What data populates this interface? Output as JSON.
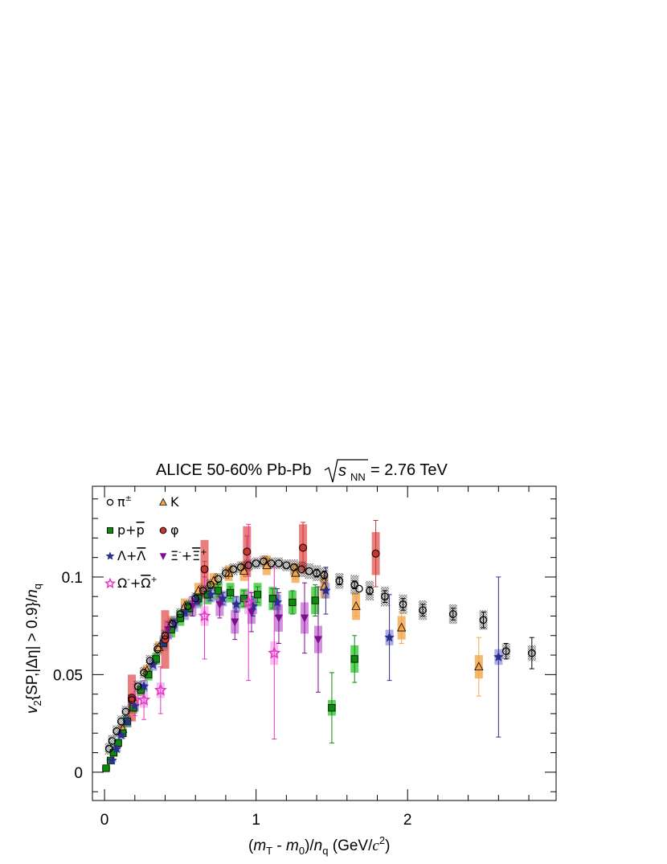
{
  "chart_data": {
    "type": "scatter",
    "title": {
      "main": "ALICE 50-60% Pb-Pb",
      "energy_symbol": "s",
      "energy_sub": "NN",
      "energy_value": "= 2.76 TeV"
    },
    "xlabel": {
      "open": "(",
      "m": "m",
      "T": "T",
      "dash": " - ",
      "m0": "m",
      "zero": "0",
      "close": ")/",
      "n": "n",
      "q": "q",
      "unit": " (GeV/",
      "c": "c",
      "two": "2",
      "end": ")"
    },
    "ylabel": {
      "v": "v",
      "two": "2",
      "body": "{SP,|Δη| > 0.9}/",
      "n": "n",
      "q": "q"
    },
    "xlim": [
      -0.08,
      2.98
    ],
    "ylim": [
      -0.0145,
      0.1465
    ],
    "xticks": [
      {
        "v": 0,
        "label": "0"
      },
      {
        "v": 1,
        "label": "1"
      },
      {
        "v": 2,
        "label": "2"
      }
    ],
    "yticks": [
      {
        "v": 0,
        "label": "0"
      },
      {
        "v": 0.05,
        "label": "0.05"
      },
      {
        "v": 0.1,
        "label": "0.1"
      }
    ],
    "series": [
      {
        "name": "π±",
        "legend": {
          "base": "π",
          "sup": "±"
        },
        "marker": "circle-open",
        "color": "#000000",
        "syscolor": "#000000",
        "sysopacity": 0.55,
        "points": [
          [
            0.03,
            0.012,
            0.001,
            0.003
          ],
          [
            0.05,
            0.016,
            0.001,
            0.003
          ],
          [
            0.08,
            0.021,
            0.001,
            0.003
          ],
          [
            0.11,
            0.026,
            0.001,
            0.003
          ],
          [
            0.14,
            0.031,
            0.001,
            0.003
          ],
          [
            0.18,
            0.037,
            0.001,
            0.003
          ],
          [
            0.22,
            0.044,
            0.001,
            0.003
          ],
          [
            0.26,
            0.051,
            0.001,
            0.003
          ],
          [
            0.3,
            0.057,
            0.001,
            0.003
          ],
          [
            0.35,
            0.063,
            0.001,
            0.003
          ],
          [
            0.4,
            0.07,
            0.001,
            0.003
          ],
          [
            0.45,
            0.076,
            0.001,
            0.003
          ],
          [
            0.5,
            0.081,
            0.001,
            0.003
          ],
          [
            0.55,
            0.085,
            0.001,
            0.003
          ],
          [
            0.6,
            0.089,
            0.001,
            0.003
          ],
          [
            0.65,
            0.093,
            0.001,
            0.003
          ],
          [
            0.7,
            0.096,
            0.001,
            0.003
          ],
          [
            0.75,
            0.099,
            0.001,
            0.003
          ],
          [
            0.8,
            0.102,
            0.001,
            0.003
          ],
          [
            0.85,
            0.104,
            0.001,
            0.003
          ],
          [
            0.9,
            0.105,
            0.001,
            0.003
          ],
          [
            0.95,
            0.106,
            0.001,
            0.003
          ],
          [
            1.0,
            0.107,
            0.001,
            0.003
          ],
          [
            1.05,
            0.108,
            0.001,
            0.003
          ],
          [
            1.1,
            0.107,
            0.001,
            0.003
          ],
          [
            1.15,
            0.107,
            0.001,
            0.003
          ],
          [
            1.2,
            0.106,
            0.001,
            0.003
          ],
          [
            1.25,
            0.105,
            0.001,
            0.004
          ],
          [
            1.3,
            0.104,
            0.001,
            0.004
          ],
          [
            1.35,
            0.103,
            0.001,
            0.004
          ],
          [
            1.4,
            0.102,
            0.002,
            0.004
          ],
          [
            1.45,
            0.101,
            0.002,
            0.004
          ],
          [
            1.55,
            0.098,
            0.002,
            0.004
          ],
          [
            1.65,
            0.096,
            0.002,
            0.005
          ],
          [
            1.75,
            0.093,
            0.002,
            0.005
          ],
          [
            1.85,
            0.09,
            0.003,
            0.005
          ],
          [
            1.97,
            0.086,
            0.003,
            0.005
          ],
          [
            2.1,
            0.083,
            0.003,
            0.005
          ],
          [
            2.3,
            0.081,
            0.003,
            0.005
          ],
          [
            2.5,
            0.078,
            0.004,
            0.005
          ],
          [
            2.65,
            0.062,
            0.004,
            0.004
          ],
          [
            2.82,
            0.061,
            0.008,
            0.004
          ],
          [
            1.68,
            0.094,
            0.0,
            0.0
          ]
        ]
      },
      {
        "name": "K",
        "legend": {
          "base": "K"
        },
        "marker": "triangle",
        "color": "#f4a54a",
        "syscolor": "#f4a54a",
        "sysopacity": 0.8,
        "points": [
          [
            0.12,
            0.022,
            0.001,
            0.002
          ],
          [
            0.2,
            0.036,
            0.001,
            0.003
          ],
          [
            0.28,
            0.052,
            0.001,
            0.003
          ],
          [
            0.36,
            0.064,
            0.001,
            0.003
          ],
          [
            0.44,
            0.076,
            0.001,
            0.004
          ],
          [
            0.53,
            0.085,
            0.001,
            0.004
          ],
          [
            0.62,
            0.093,
            0.001,
            0.004
          ],
          [
            0.72,
            0.098,
            0.002,
            0.004
          ],
          [
            0.82,
            0.102,
            0.002,
            0.004
          ],
          [
            0.92,
            0.103,
            0.002,
            0.005
          ],
          [
            1.07,
            0.106,
            0.002,
            0.005
          ],
          [
            1.26,
            0.102,
            0.003,
            0.005
          ],
          [
            1.45,
            0.095,
            0.004,
            0.006
          ],
          [
            1.66,
            0.085,
            0.005,
            0.007
          ],
          [
            1.96,
            0.074,
            0.008,
            0.006
          ],
          [
            2.47,
            0.054,
            0.015,
            0.006
          ]
        ]
      },
      {
        "name": "p+p̄",
        "legend": {
          "base": "p+",
          "bar": "p"
        },
        "marker": "square",
        "color": "#0e8a0e",
        "syscolor": "#2cc42c",
        "sysopacity": 0.75,
        "points": [
          [
            0.01,
            0.002,
            0.001,
            0.001
          ],
          [
            0.04,
            0.006,
            0.001,
            0.001
          ],
          [
            0.06,
            0.01,
            0.001,
            0.002
          ],
          [
            0.09,
            0.015,
            0.001,
            0.002
          ],
          [
            0.12,
            0.02,
            0.001,
            0.002
          ],
          [
            0.15,
            0.026,
            0.001,
            0.003
          ],
          [
            0.19,
            0.033,
            0.001,
            0.003
          ],
          [
            0.24,
            0.042,
            0.001,
            0.003
          ],
          [
            0.29,
            0.05,
            0.001,
            0.003
          ],
          [
            0.34,
            0.058,
            0.001,
            0.003
          ],
          [
            0.39,
            0.066,
            0.001,
            0.003
          ],
          [
            0.44,
            0.073,
            0.001,
            0.004
          ],
          [
            0.5,
            0.079,
            0.002,
            0.004
          ],
          [
            0.56,
            0.084,
            0.002,
            0.004
          ],
          [
            0.62,
            0.089,
            0.002,
            0.004
          ],
          [
            0.68,
            0.091,
            0.002,
            0.005
          ],
          [
            0.75,
            0.093,
            0.003,
            0.005
          ],
          [
            0.83,
            0.092,
            0.003,
            0.005
          ],
          [
            0.92,
            0.089,
            0.004,
            0.005
          ],
          [
            1.01,
            0.091,
            0.004,
            0.006
          ],
          [
            1.11,
            0.089,
            0.005,
            0.006
          ],
          [
            1.24,
            0.087,
            0.006,
            0.006
          ],
          [
            1.39,
            0.088,
            0.008,
            0.007
          ],
          [
            1.65,
            0.058,
            0.012,
            0.007
          ],
          [
            1.5,
            0.033,
            0.018,
            0.004
          ]
        ]
      },
      {
        "name": "φ",
        "legend": {
          "base": "φ"
        },
        "marker": "circle",
        "color": "#c8372d",
        "syscolor": "#e05353",
        "sysopacity": 0.75,
        "points": [
          [
            0.18,
            0.038,
            0.002,
            0.012
          ],
          [
            0.4,
            0.068,
            0.002,
            0.015
          ],
          [
            0.66,
            0.104,
            0.004,
            0.015
          ],
          [
            0.94,
            0.113,
            0.008,
            0.013
          ],
          [
            1.31,
            0.115,
            0.013,
            0.012
          ],
          [
            1.79,
            0.112,
            0.017,
            0.011
          ]
        ]
      },
      {
        "name": "Λ+Λ̄",
        "legend": {
          "base": "Λ+",
          "bar": "Λ"
        },
        "marker": "star",
        "color": "#2b2e8a",
        "syscolor": "#5b5ed0",
        "sysopacity": 0.5,
        "points": [
          [
            0.05,
            0.006,
            0.001,
            0.001
          ],
          [
            0.08,
            0.012,
            0.001,
            0.002
          ],
          [
            0.11,
            0.019,
            0.001,
            0.002
          ],
          [
            0.15,
            0.026,
            0.001,
            0.003
          ],
          [
            0.2,
            0.034,
            0.001,
            0.003
          ],
          [
            0.26,
            0.044,
            0.001,
            0.003
          ],
          [
            0.32,
            0.055,
            0.001,
            0.003
          ],
          [
            0.39,
            0.066,
            0.001,
            0.004
          ],
          [
            0.46,
            0.076,
            0.002,
            0.004
          ],
          [
            0.53,
            0.082,
            0.002,
            0.004
          ],
          [
            0.61,
            0.088,
            0.002,
            0.004
          ],
          [
            0.7,
            0.091,
            0.003,
            0.004
          ],
          [
            0.78,
            0.089,
            0.003,
            0.004
          ],
          [
            0.87,
            0.086,
            0.004,
            0.004
          ],
          [
            0.98,
            0.085,
            0.005,
            0.004
          ],
          [
            1.14,
            0.087,
            0.007,
            0.004
          ],
          [
            1.46,
            0.093,
            0.012,
            0.004
          ],
          [
            1.88,
            0.069,
            0.022,
            0.004
          ],
          [
            2.6,
            0.059,
            0.041,
            0.004
          ]
        ]
      },
      {
        "name": "Ξ⁻+Ξ̄⁺",
        "legend": {
          "base": "Ξ",
          "sup1": "-",
          "plus": "+",
          "bar": "Ξ",
          "sup2": "+"
        },
        "marker": "triangle-down",
        "color": "#7a0f8c",
        "syscolor": "#b54ac8",
        "sysopacity": 0.6,
        "points": [
          [
            0.42,
            0.073,
            0.004,
            0.005
          ],
          [
            0.58,
            0.085,
            0.005,
            0.005
          ],
          [
            0.76,
            0.086,
            0.007,
            0.006
          ],
          [
            0.86,
            0.077,
            0.009,
            0.006
          ],
          [
            0.97,
            0.082,
            0.01,
            0.006
          ],
          [
            1.15,
            0.079,
            0.013,
            0.007
          ],
          [
            1.32,
            0.079,
            0.018,
            0.008
          ],
          [
            1.41,
            0.068,
            0.027,
            0.007
          ]
        ]
      },
      {
        "name": "Ω⁻+Ω̄⁺",
        "legend": {
          "base": "Ω",
          "sup1": "-",
          "plus": "+",
          "bar": "Ω",
          "sup2": "+"
        },
        "marker": "star-open",
        "color": "#e535c4",
        "syscolor": "#f07ce0",
        "sysopacity": 0.5,
        "points": [
          [
            0.2,
            0.037,
            0.008,
            0.004
          ],
          [
            0.26,
            0.037,
            0.01,
            0.004
          ],
          [
            0.37,
            0.042,
            0.012,
            0.004
          ],
          [
            0.66,
            0.08,
            0.022,
            0.005
          ],
          [
            0.95,
            0.087,
            0.04,
            0.006
          ],
          [
            1.12,
            0.061,
            0.044,
            0.006
          ]
        ]
      }
    ]
  }
}
